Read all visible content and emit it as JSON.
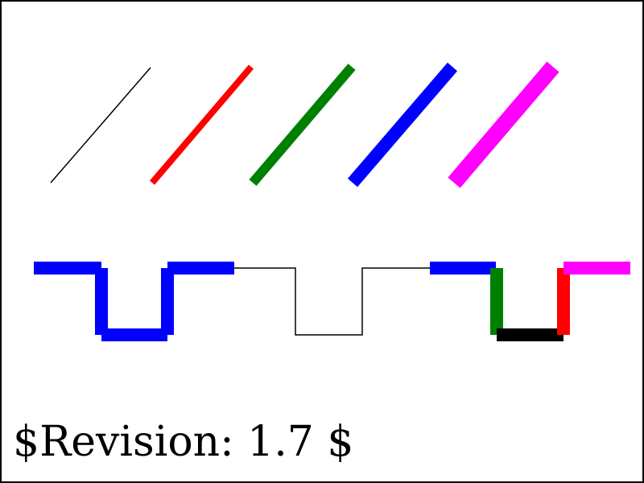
{
  "revision_text": "$Revision: 1.7 $",
  "colors": {
    "black": "#000000",
    "red": "#ff0000",
    "green": "#008000",
    "blue": "#0000ff",
    "magenta": "#ff00ff",
    "border": "#000000",
    "background": "#ffffff"
  }
}
